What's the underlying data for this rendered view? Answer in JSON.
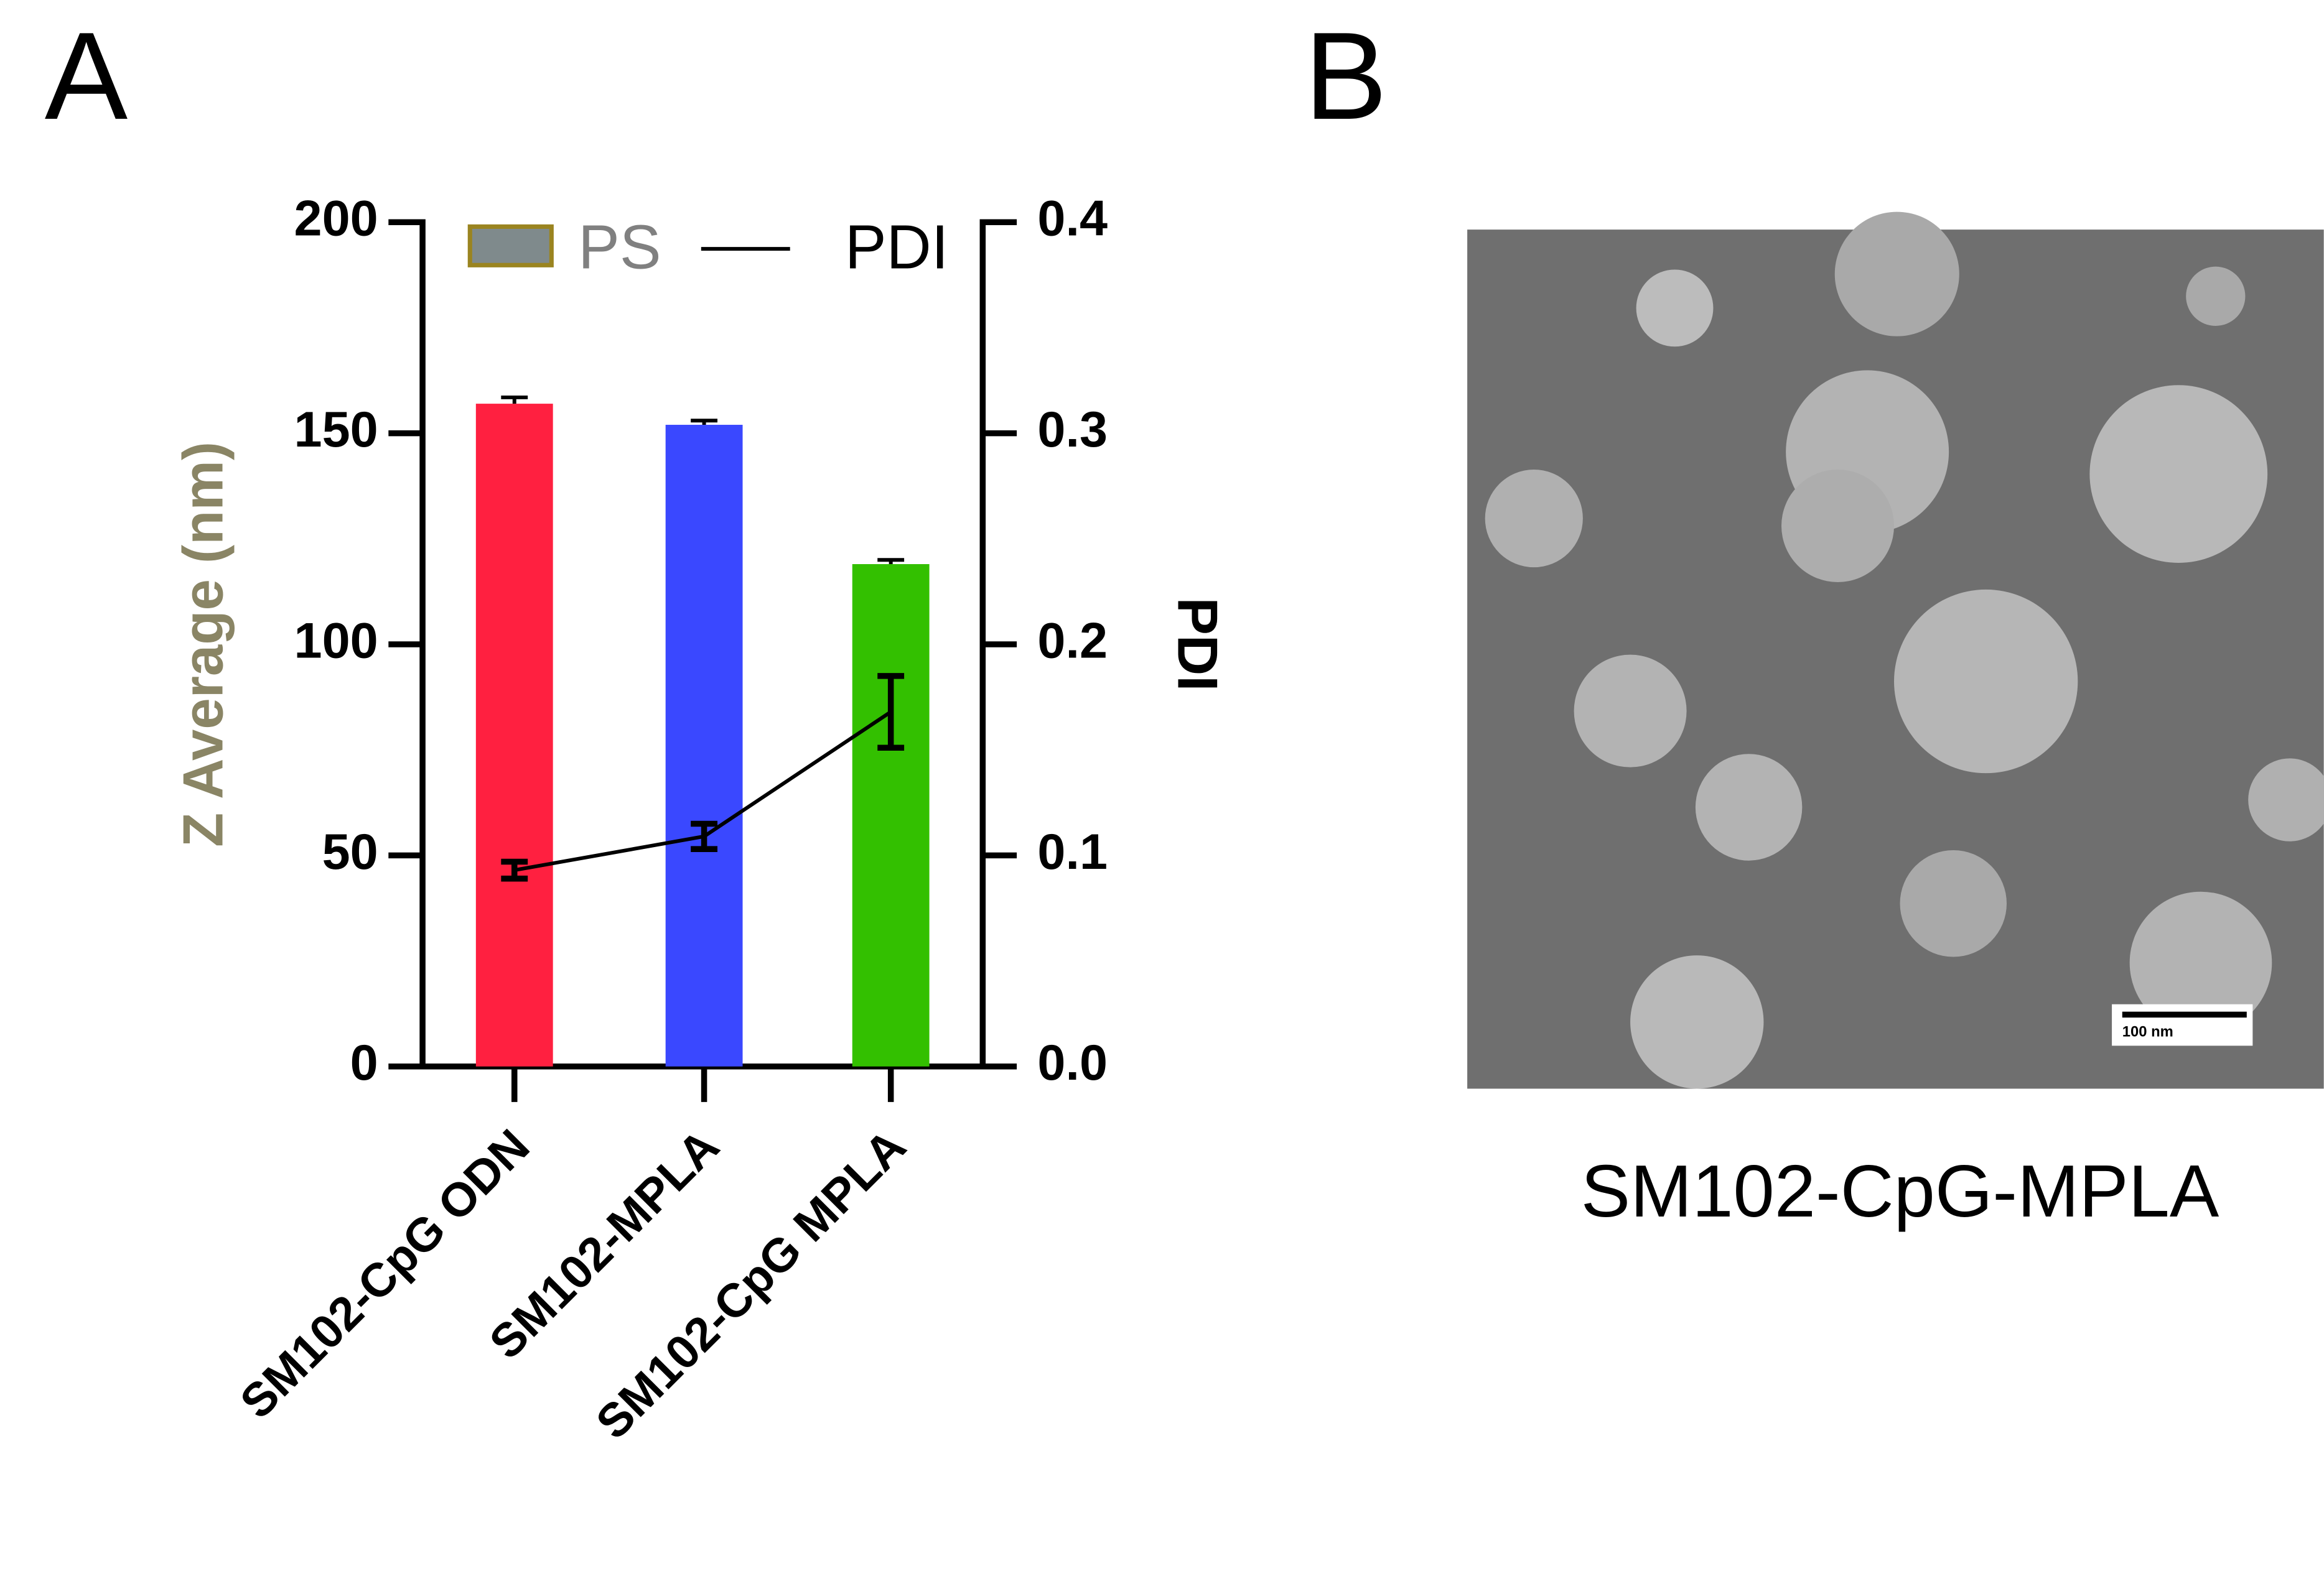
{
  "panel_labels": [
    "A",
    "B"
  ],
  "chart_data": {
    "type": "bar",
    "categories": [
      "SM102-CpG ODN",
      "SM102-MPLA",
      "SM102-CpG MPLA"
    ],
    "series": [
      {
        "name": "PS",
        "color": "#7f8a8c",
        "border_color": "#9a8420",
        "colors": [
          "#ff2040",
          "#3a48ff",
          "#33c000"
        ],
        "values": [
          157,
          152,
          119
        ],
        "errors": [
          1.5,
          1,
          1
        ]
      },
      {
        "name": "PDI",
        "type": "line",
        "axis": "y2",
        "color": "#000000",
        "values": [
          0.093,
          0.109,
          0.168
        ],
        "errors": [
          0.004,
          0.006,
          0.017
        ]
      }
    ],
    "ylabel": "Z Average (nm)",
    "y2label": "PDI",
    "ylim": [
      0,
      200
    ],
    "yticks": [
      0,
      50,
      100,
      150,
      200
    ],
    "y2lim": [
      0,
      0.4
    ],
    "y2ticks": [
      {
        "value": 0,
        "label": "0.0"
      },
      0.1,
      0.2,
      0.3,
      0.4
    ]
  },
  "image": {
    "scale_bar": "100 nm",
    "caption": "SM102-CpG-MPLA"
  }
}
